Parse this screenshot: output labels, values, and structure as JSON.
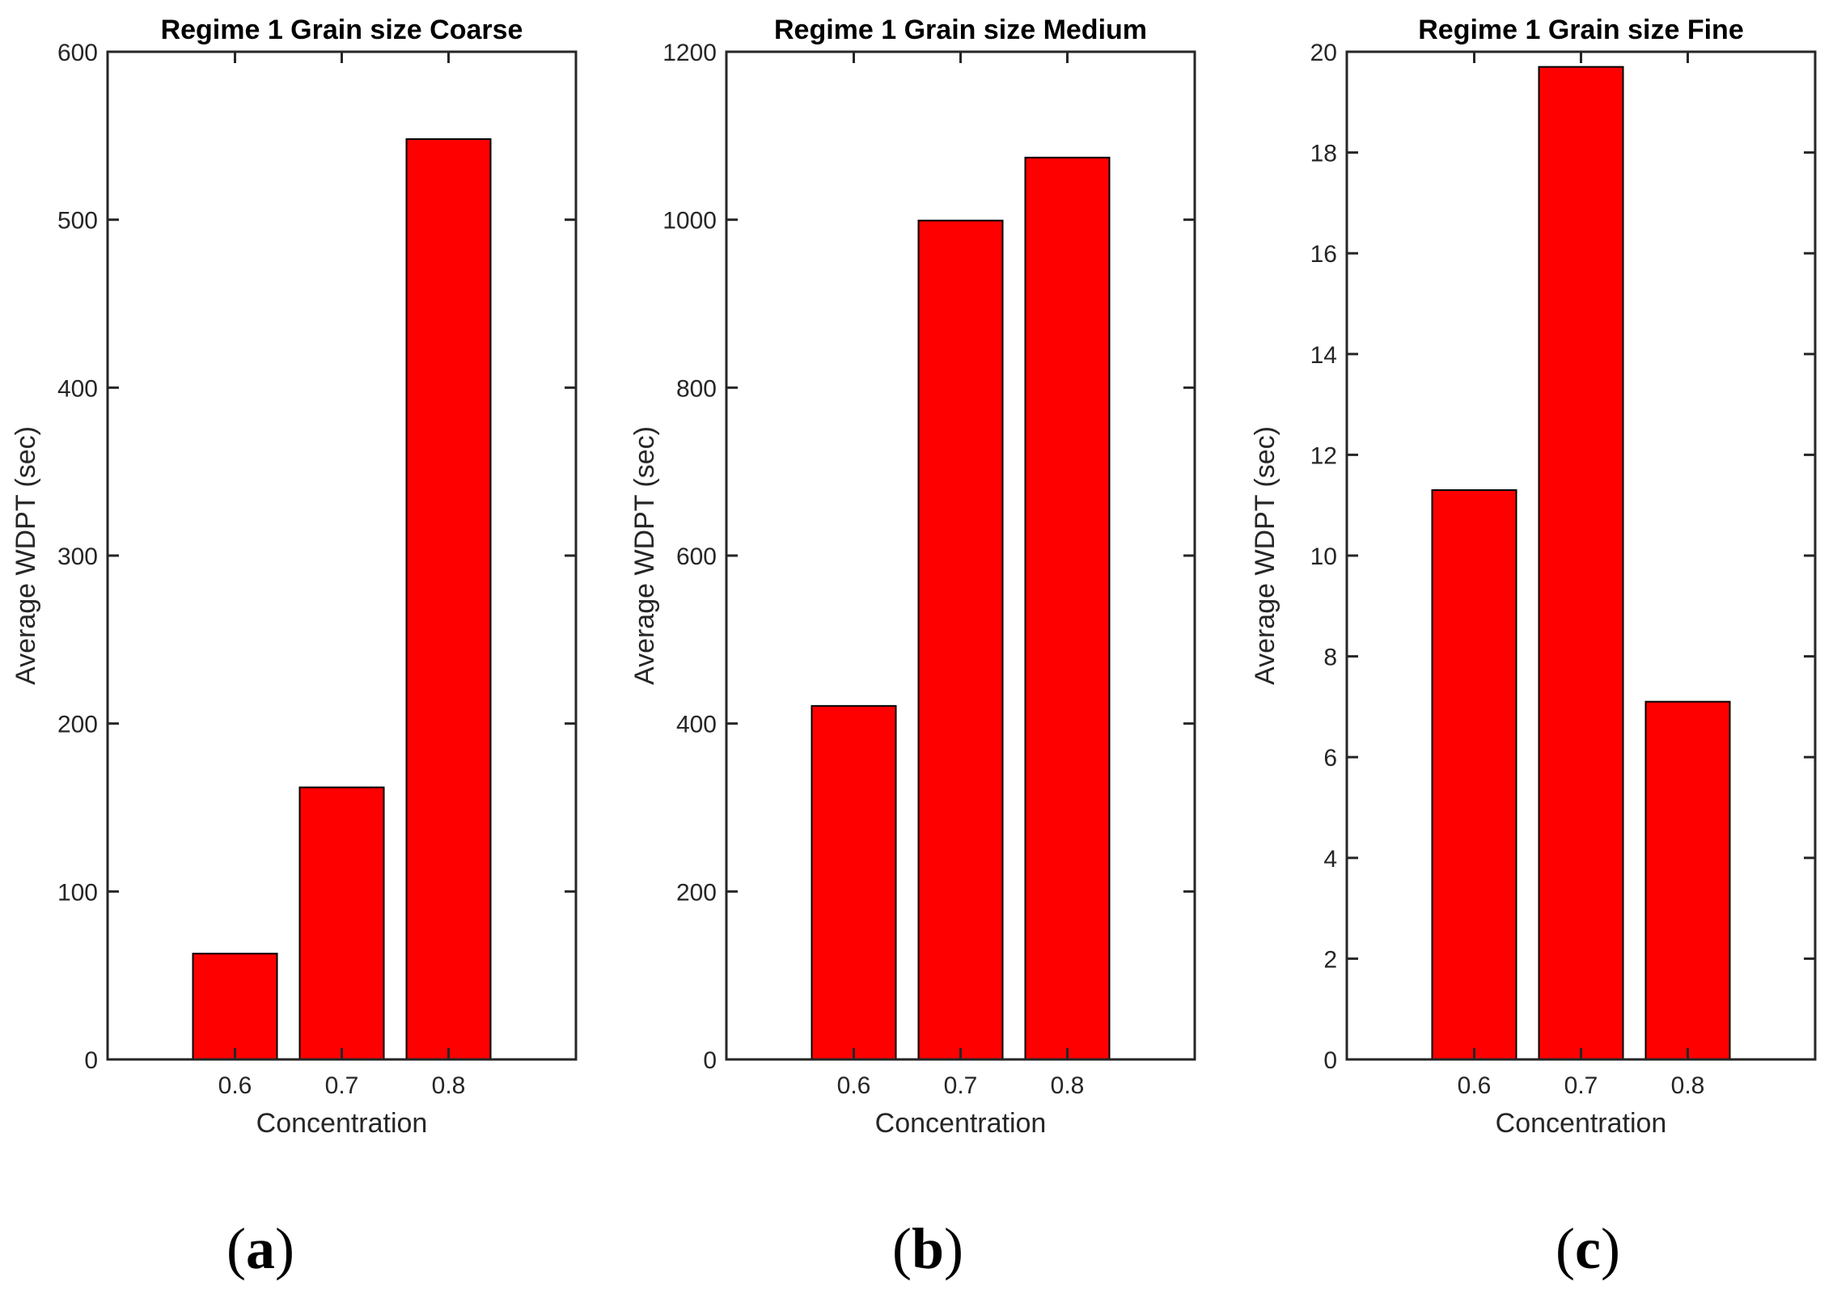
{
  "figure": {
    "captions": [
      {
        "open": "(",
        "letter": "a",
        "close": ")"
      },
      {
        "open": "(",
        "letter": "b",
        "close": ")"
      },
      {
        "open": "(",
        "letter": "c",
        "close": ")"
      }
    ],
    "bar_color": "#ff0000"
  },
  "chart_data": [
    {
      "type": "bar",
      "title": "Regime 1 Grain size Coarse",
      "xlabel": "Concentration",
      "ylabel": "Average WDPT (sec)",
      "categories": [
        "0.6",
        "0.7",
        "0.8"
      ],
      "values": [
        63,
        162,
        548
      ],
      "ylim": [
        0,
        600
      ],
      "yticks": [
        0,
        100,
        200,
        300,
        400,
        500,
        600
      ],
      "ytick_labels": [
        "0",
        "100",
        "200",
        "300",
        "400",
        "500",
        "600"
      ],
      "grid": false
    },
    {
      "type": "bar",
      "title": "Regime 1 Grain size Medium",
      "xlabel": "Concentration",
      "ylabel": "Average WDPT (sec)",
      "categories": [
        "0.6",
        "0.7",
        "0.8"
      ],
      "values": [
        421,
        999,
        1074
      ],
      "ylim": [
        0,
        1200
      ],
      "yticks": [
        0,
        200,
        400,
        600,
        800,
        1000,
        1200
      ],
      "ytick_labels": [
        "0",
        "200",
        "400",
        "600",
        "800",
        "1000",
        "1200"
      ],
      "grid": false
    },
    {
      "type": "bar",
      "title": "Regime 1 Grain size Fine",
      "xlabel": "Concentration",
      "ylabel": "Average WDPT (sec)",
      "categories": [
        "0.6",
        "0.7",
        "0.8"
      ],
      "values": [
        11.3,
        19.7,
        7.1
      ],
      "ylim": [
        0,
        20
      ],
      "yticks": [
        0,
        2,
        4,
        6,
        8,
        10,
        12,
        14,
        16,
        18,
        20
      ],
      "ytick_labels": [
        "0",
        "2",
        "4",
        "6",
        "8",
        "10",
        "12",
        "14",
        "16",
        "18",
        "20"
      ],
      "grid": false
    }
  ]
}
